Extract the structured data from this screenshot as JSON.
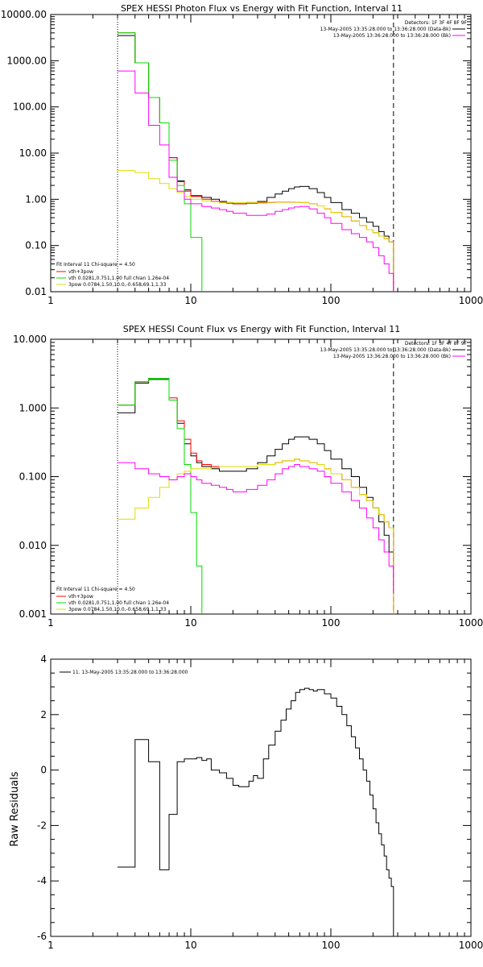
{
  "chart_data": [
    {
      "type": "line",
      "title": "SPEX HESSI Photon Flux vs Energy with Fit Function, Interval 11",
      "x_scale": "log",
      "y_scale": "log",
      "xlim": [
        1,
        1000
      ],
      "ylim": [
        0.01,
        10000
      ],
      "x_ticks": [
        1,
        10,
        100,
        1000
      ],
      "x_tick_labels": [
        "1",
        "10",
        "100",
        "1000"
      ],
      "y_ticks": [
        0.01,
        0.1,
        1,
        10,
        100,
        1000,
        10000
      ],
      "y_tick_labels": [
        "0.01",
        "0.10",
        "1.00",
        "10.00",
        "100.00",
        "1000.00",
        "10000.00"
      ],
      "dotted_line_x": 3,
      "dashed_line_x": 280,
      "info_lines": [
        "Detectors: 1F 3F 4F 8F 9F",
        "13-May-2005 13:35:28.000 to 13:36:28.000 (Data-Bk)",
        "13-May-2005 13:36:28.000 to 13:36:28.000 (Bk)"
      ],
      "fit_info": {
        "title": "Fit Interval 11    Chi-square = 4.50",
        "entries": [
          "vth+3pow",
          "vth 0.0281,0.751,1.00  full chian 1.26e-04",
          "3pow 0.0784,1.50,10.0,-0.658,69.1,1.33"
        ],
        "legend_colors": [
          "#ff0000",
          "#00dd00",
          "#dddd00"
        ]
      },
      "series": [
        {
          "role": "data",
          "color": "#000000",
          "x": [
            3,
            4,
            5,
            6,
            7,
            8,
            9,
            10,
            12,
            14,
            16,
            18,
            20,
            25,
            30,
            35,
            40,
            45,
            50,
            55,
            60,
            70,
            80,
            90,
            100,
            120,
            140,
            160,
            180,
            200,
            220,
            240,
            260,
            280
          ],
          "y": [
            3500,
            900,
            160,
            45,
            8,
            2.5,
            1.6,
            1.2,
            1.1,
            1.0,
            0.9,
            0.85,
            0.8,
            0.85,
            0.9,
            1.1,
            1.3,
            1.5,
            1.7,
            1.85,
            1.9,
            1.7,
            1.4,
            1.1,
            0.85,
            0.6,
            0.5,
            0.4,
            0.32,
            0.26,
            0.2,
            0.16,
            0.12,
            0.01
          ]
        },
        {
          "role": "total",
          "color": "#ff0000",
          "x": [
            3,
            4,
            5,
            6,
            7,
            8,
            9,
            10,
            12,
            14,
            16,
            18,
            20,
            25,
            30,
            35,
            40,
            45,
            50,
            55,
            60,
            70,
            80,
            90,
            100,
            120,
            140,
            160,
            180,
            200,
            220,
            240,
            260,
            280
          ],
          "y": [
            4000,
            900,
            160,
            45,
            8,
            2.4,
            1.5,
            1.15,
            1.0,
            0.9,
            0.85,
            0.82,
            0.8,
            0.82,
            0.84,
            0.86,
            0.87,
            0.87,
            0.87,
            0.86,
            0.85,
            0.8,
            0.72,
            0.62,
            0.52,
            0.42,
            0.34,
            0.27,
            0.22,
            0.19,
            0.16,
            0.14,
            0.12,
            0.01
          ]
        },
        {
          "role": "thermal",
          "color": "#00dd00",
          "x": [
            3,
            4,
            5,
            6,
            7,
            8,
            9,
            10,
            12
          ],
          "y": [
            4000,
            900,
            160,
            45,
            7,
            2.0,
            0.8,
            0.15,
            0.01
          ]
        },
        {
          "role": "nonthermal",
          "color": "#dddd00",
          "x": [
            3,
            4,
            5,
            6,
            7,
            8,
            9,
            10,
            12,
            14,
            16,
            18,
            20,
            25,
            30,
            35,
            40,
            45,
            50,
            55,
            60,
            70,
            80,
            90,
            100,
            120,
            140,
            160,
            180,
            200,
            220,
            240,
            260,
            280
          ],
          "y": [
            4.2,
            3.8,
            2.8,
            2.2,
            1.7,
            1.4,
            1.15,
            1.0,
            0.92,
            0.88,
            0.86,
            0.85,
            0.85,
            0.85,
            0.86,
            0.87,
            0.87,
            0.87,
            0.87,
            0.86,
            0.85,
            0.8,
            0.72,
            0.62,
            0.52,
            0.42,
            0.34,
            0.27,
            0.22,
            0.19,
            0.16,
            0.14,
            0.12,
            0.01
          ]
        },
        {
          "role": "background",
          "color": "#ff00ff",
          "x": [
            3,
            4,
            5,
            6,
            7,
            8,
            9,
            10,
            12,
            14,
            16,
            18,
            20,
            25,
            30,
            35,
            40,
            45,
            50,
            55,
            60,
            70,
            80,
            90,
            100,
            120,
            140,
            160,
            180,
            200,
            220,
            240,
            260,
            280
          ],
          "y": [
            600,
            200,
            40,
            15,
            3,
            1.5,
            1.0,
            0.8,
            0.7,
            0.65,
            0.6,
            0.55,
            0.5,
            0.45,
            0.45,
            0.48,
            0.55,
            0.6,
            0.65,
            0.68,
            0.7,
            0.62,
            0.5,
            0.4,
            0.3,
            0.22,
            0.18,
            0.15,
            0.12,
            0.09,
            0.06,
            0.04,
            0.025,
            0.01
          ]
        }
      ]
    },
    {
      "type": "line",
      "title": "SPEX HESSI Count Flux vs Energy with Fit Function, Interval 11",
      "x_scale": "log",
      "y_scale": "log",
      "xlim": [
        1,
        1000
      ],
      "ylim": [
        0.001,
        10
      ],
      "x_ticks": [
        1,
        10,
        100,
        1000
      ],
      "x_tick_labels": [
        "1",
        "10",
        "100",
        "1000"
      ],
      "y_ticks": [
        0.001,
        0.01,
        0.1,
        1,
        10
      ],
      "y_tick_labels": [
        "0.001",
        "0.010",
        "0.100",
        "1.000",
        "10.000"
      ],
      "dotted_line_x": 3,
      "dashed_line_x": 280,
      "info_lines": [
        "Detectors: 1F 3F 4F 8F 9F",
        "13-May-2005 13:35:28.000 to 13:36:28.000 (Data-Bk)",
        "13-May-2005 13:36:28.000 to 13:36:28.000 (Bk)"
      ],
      "fit_info": {
        "title": "Fit Interval 11    Chi-square = 4.50",
        "entries": [
          "vth+3pow",
          "vth 0.0281,0.751,1.00  full chian 1.26e-04",
          "3pow 0.0784,1.50,10.0,-0.658,69.1,1.33"
        ],
        "legend_colors": [
          "#ff0000",
          "#00dd00",
          "#dddd00"
        ]
      },
      "series": [
        {
          "role": "data",
          "color": "#000000",
          "x": [
            3,
            4,
            5,
            6,
            7,
            8,
            9,
            10,
            11,
            12,
            14,
            16,
            18,
            20,
            25,
            30,
            35,
            40,
            45,
            50,
            55,
            60,
            70,
            80,
            90,
            100,
            120,
            140,
            160,
            180,
            200,
            220,
            240,
            260,
            280
          ],
          "y": [
            0.85,
            2.3,
            2.6,
            2.6,
            1.3,
            0.6,
            0.3,
            0.2,
            0.16,
            0.14,
            0.13,
            0.12,
            0.12,
            0.12,
            0.13,
            0.16,
            0.2,
            0.25,
            0.3,
            0.35,
            0.38,
            0.38,
            0.35,
            0.3,
            0.24,
            0.18,
            0.13,
            0.1,
            0.07,
            0.05,
            0.035,
            0.022,
            0.014,
            0.008,
            0.0045
          ]
        },
        {
          "role": "total",
          "color": "#ff0000",
          "x": [
            3,
            4,
            5,
            6,
            7,
            8,
            9,
            10,
            11,
            12,
            14,
            16,
            18,
            20,
            25,
            30,
            35,
            40,
            45,
            50,
            55,
            60,
            70,
            80,
            90,
            100,
            120,
            140,
            160,
            180,
            200,
            220,
            240,
            260,
            280
          ],
          "y": [
            1.1,
            2.4,
            2.7,
            2.7,
            1.4,
            0.65,
            0.35,
            0.22,
            0.17,
            0.15,
            0.14,
            0.14,
            0.14,
            0.14,
            0.14,
            0.15,
            0.15,
            0.16,
            0.17,
            0.17,
            0.18,
            0.17,
            0.16,
            0.15,
            0.13,
            0.11,
            0.09,
            0.07,
            0.055,
            0.045,
            0.035,
            0.028,
            0.022,
            0.018,
            0.001
          ]
        },
        {
          "role": "thermal",
          "color": "#00dd00",
          "x": [
            3,
            4,
            5,
            6,
            7,
            8,
            9,
            10,
            11,
            12
          ],
          "y": [
            1.1,
            2.4,
            2.7,
            2.7,
            1.3,
            0.5,
            0.15,
            0.03,
            0.005,
            0.001
          ]
        },
        {
          "role": "nonthermal",
          "color": "#dddd00",
          "x": [
            3,
            4,
            5,
            6,
            7,
            8,
            9,
            10,
            11,
            12,
            14,
            16,
            18,
            20,
            25,
            30,
            35,
            40,
            45,
            50,
            55,
            60,
            70,
            80,
            90,
            100,
            120,
            140,
            160,
            180,
            200,
            220,
            240,
            260,
            280
          ],
          "y": [
            0.024,
            0.035,
            0.05,
            0.07,
            0.09,
            0.11,
            0.12,
            0.13,
            0.13,
            0.13,
            0.135,
            0.14,
            0.14,
            0.14,
            0.14,
            0.15,
            0.15,
            0.16,
            0.17,
            0.17,
            0.18,
            0.17,
            0.16,
            0.15,
            0.13,
            0.11,
            0.09,
            0.07,
            0.055,
            0.045,
            0.035,
            0.028,
            0.022,
            0.018,
            0.001
          ]
        },
        {
          "role": "background",
          "color": "#ff00ff",
          "x": [
            3,
            4,
            5,
            6,
            7,
            8,
            9,
            10,
            11,
            12,
            14,
            16,
            18,
            20,
            25,
            30,
            35,
            40,
            45,
            50,
            55,
            60,
            70,
            80,
            90,
            100,
            120,
            140,
            160,
            180,
            200,
            220,
            240,
            260,
            280
          ],
          "y": [
            0.16,
            0.13,
            0.11,
            0.1,
            0.09,
            0.1,
            0.11,
            0.1,
            0.09,
            0.08,
            0.075,
            0.07,
            0.065,
            0.06,
            0.065,
            0.075,
            0.09,
            0.11,
            0.13,
            0.14,
            0.15,
            0.14,
            0.13,
            0.12,
            0.1,
            0.08,
            0.06,
            0.045,
            0.035,
            0.025,
            0.018,
            0.012,
            0.008,
            0.005,
            0.002
          ]
        }
      ]
    },
    {
      "type": "line",
      "title": "",
      "x_scale": "log",
      "y_scale": "linear",
      "xlim": [
        1,
        1000
      ],
      "ylim": [
        -6,
        4
      ],
      "x_ticks": [
        1,
        10,
        100,
        1000
      ],
      "x_tick_labels": [
        "1",
        "10",
        "100",
        "1000"
      ],
      "y_ticks": [
        -6,
        -4,
        -2,
        0,
        2,
        4
      ],
      "y_tick_labels": [
        "-6",
        "-4",
        "-2",
        "0",
        "2",
        "4"
      ],
      "ylabel": "Raw Residuals",
      "legend": [
        "11. 13-May-2005 13:35:28.000 to 13:36:28.000"
      ],
      "series": [
        {
          "role": "residuals",
          "color": "#000000",
          "x": [
            3,
            4,
            5,
            6,
            7,
            8,
            9,
            10,
            11,
            12,
            13,
            14,
            16,
            18,
            20,
            22,
            24,
            26,
            28,
            30,
            33,
            36,
            40,
            44,
            48,
            52,
            56,
            60,
            65,
            70,
            75,
            80,
            90,
            100,
            110,
            120,
            130,
            140,
            150,
            160,
            170,
            180,
            190,
            200,
            210,
            220,
            230,
            240,
            250,
            260,
            270,
            280
          ],
          "y": [
            -3.5,
            1.1,
            0.3,
            -3.6,
            -1.6,
            0.3,
            0.4,
            0.4,
            0.45,
            0.35,
            0.4,
            0,
            -0.1,
            -0.3,
            -0.55,
            -0.6,
            -0.6,
            -0.4,
            -0.2,
            -0.3,
            0.4,
            0.9,
            1.4,
            1.8,
            2.2,
            2.5,
            2.8,
            2.9,
            2.95,
            2.9,
            2.85,
            2.9,
            2.75,
            2.6,
            2.3,
            2,
            1.6,
            1.2,
            0.8,
            0.4,
            0,
            -0.4,
            -0.9,
            -1.4,
            -1.9,
            -2.3,
            -2.7,
            -3.1,
            -3.6,
            -3.9,
            -4.2,
            -6
          ]
        }
      ]
    }
  ]
}
